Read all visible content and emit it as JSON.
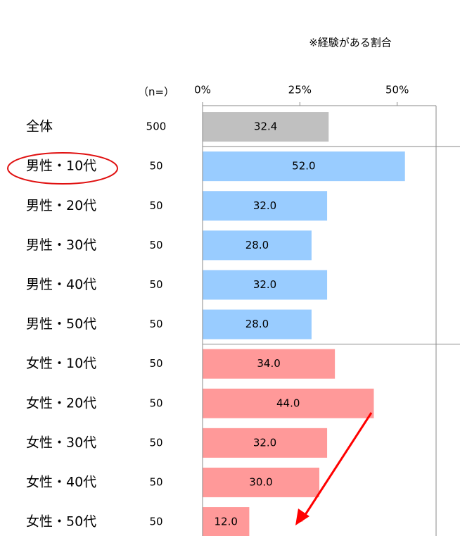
{
  "chart_data": {
    "type": "barh",
    "note": "※経験がある割合",
    "n_header": "（n=）",
    "categories": [
      "全体",
      "男性・10代",
      "男性・20代",
      "男性・30代",
      "男性・40代",
      "男性・50代",
      "女性・10代",
      "女性・20代",
      "女性・30代",
      "女性・40代",
      "女性・50代"
    ],
    "n": [
      500,
      50,
      50,
      50,
      50,
      50,
      50,
      50,
      50,
      50,
      50
    ],
    "values": [
      32.4,
      52,
      32,
      28,
      32,
      28,
      34,
      44,
      32,
      30,
      12
    ],
    "value_labels": [
      "32.4",
      "52.0",
      "32.0",
      "28.0",
      "32.0",
      "28.0",
      "34.0",
      "44.0",
      "32.0",
      "30.0",
      "12.0"
    ],
    "colors": [
      "#c0c0c0",
      "#99ccff",
      "#99ccff",
      "#99ccff",
      "#99ccff",
      "#99ccff",
      "#ff9999",
      "#ff9999",
      "#ff9999",
      "#ff9999",
      "#ff9999"
    ],
    "xlim": [
      0,
      60
    ],
    "xticks": [
      {
        "value": 0,
        "label": "0%"
      },
      {
        "value": 25,
        "label": "25%"
      },
      {
        "value": 50,
        "label": "50%"
      }
    ]
  }
}
